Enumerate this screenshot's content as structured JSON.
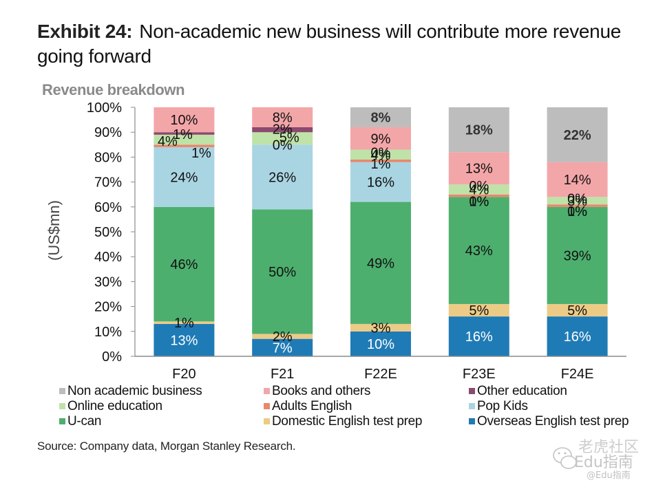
{
  "title": {
    "label": "Exhibit 24:",
    "text": "Non-academic new business will contribute more revenue going forward"
  },
  "chart_data": {
    "type": "bar",
    "stacked": true,
    "title": "Revenue breakdown",
    "xlabel": "",
    "ylabel": "(US$mn)",
    "ylim": [
      0,
      100
    ],
    "yticks": [
      "0%",
      "10%",
      "20%",
      "30%",
      "40%",
      "50%",
      "60%",
      "70%",
      "80%",
      "90%",
      "100%"
    ],
    "grid": false,
    "legend_position": "bottom",
    "label_suffix": "%",
    "categories": [
      "F20",
      "F21",
      "F22E",
      "F23E",
      "F24E"
    ],
    "series": [
      {
        "name": "Overseas English test prep",
        "color": "#1f7bb6",
        "label_color": "#ffffff",
        "values": [
          13,
          7,
          10,
          16,
          16
        ]
      },
      {
        "name": "Domestic English test prep",
        "color": "#eccb87",
        "label_color": "#111111",
        "values": [
          1,
          2,
          3,
          5,
          5
        ]
      },
      {
        "name": "U-can",
        "color": "#4daf6e",
        "label_color": "#111111",
        "values": [
          46,
          50,
          49,
          43,
          39
        ]
      },
      {
        "name": "Pop Kids",
        "color": "#a9d5e2",
        "label_color": "#111111",
        "values": [
          24,
          26,
          16,
          0,
          0
        ]
      },
      {
        "name": "Adults English",
        "color": "#e9876c",
        "label_color": "#111111",
        "values": [
          1,
          0,
          1,
          1,
          1
        ]
      },
      {
        "name": "Online education",
        "color": "#bfe2a8",
        "label_color": "#111111",
        "values": [
          4,
          5,
          4,
          4,
          3
        ]
      },
      {
        "name": "Other education",
        "color": "#8b4a6e",
        "label_color": "#111111",
        "values": [
          1,
          2,
          0,
          0,
          0
        ]
      },
      {
        "name": "Books and others",
        "color": "#f3a6a8",
        "label_color": "#111111",
        "values": [
          10,
          8,
          9,
          13,
          14
        ]
      },
      {
        "name": "Non academic business",
        "color": "#bdbdbd",
        "label_color": "#333333",
        "label_bold": true,
        "values": [
          null,
          null,
          8,
          18,
          22
        ]
      }
    ]
  },
  "legend": [
    {
      "name": "Non academic business",
      "color": "#bdbdbd"
    },
    {
      "name": "Books and others",
      "color": "#f3a6a8"
    },
    {
      "name": "Other education",
      "color": "#8b4a6e"
    },
    {
      "name": "Online education",
      "color": "#bfe2a8"
    },
    {
      "name": "Adults English",
      "color": "#e9876c"
    },
    {
      "name": "Pop Kids",
      "color": "#a9d5e2"
    },
    {
      "name": "U-can",
      "color": "#4daf6e"
    },
    {
      "name": "Domestic English test prep",
      "color": "#eccb87"
    },
    {
      "name": "Overseas English test prep",
      "color": "#1f7bb6"
    }
  ],
  "source": "Source: Company data, Morgan Stanley Research.",
  "watermark": {
    "line1": "老虎社区",
    "line2": "Edu指南",
    "line3": "@Edu指南"
  }
}
